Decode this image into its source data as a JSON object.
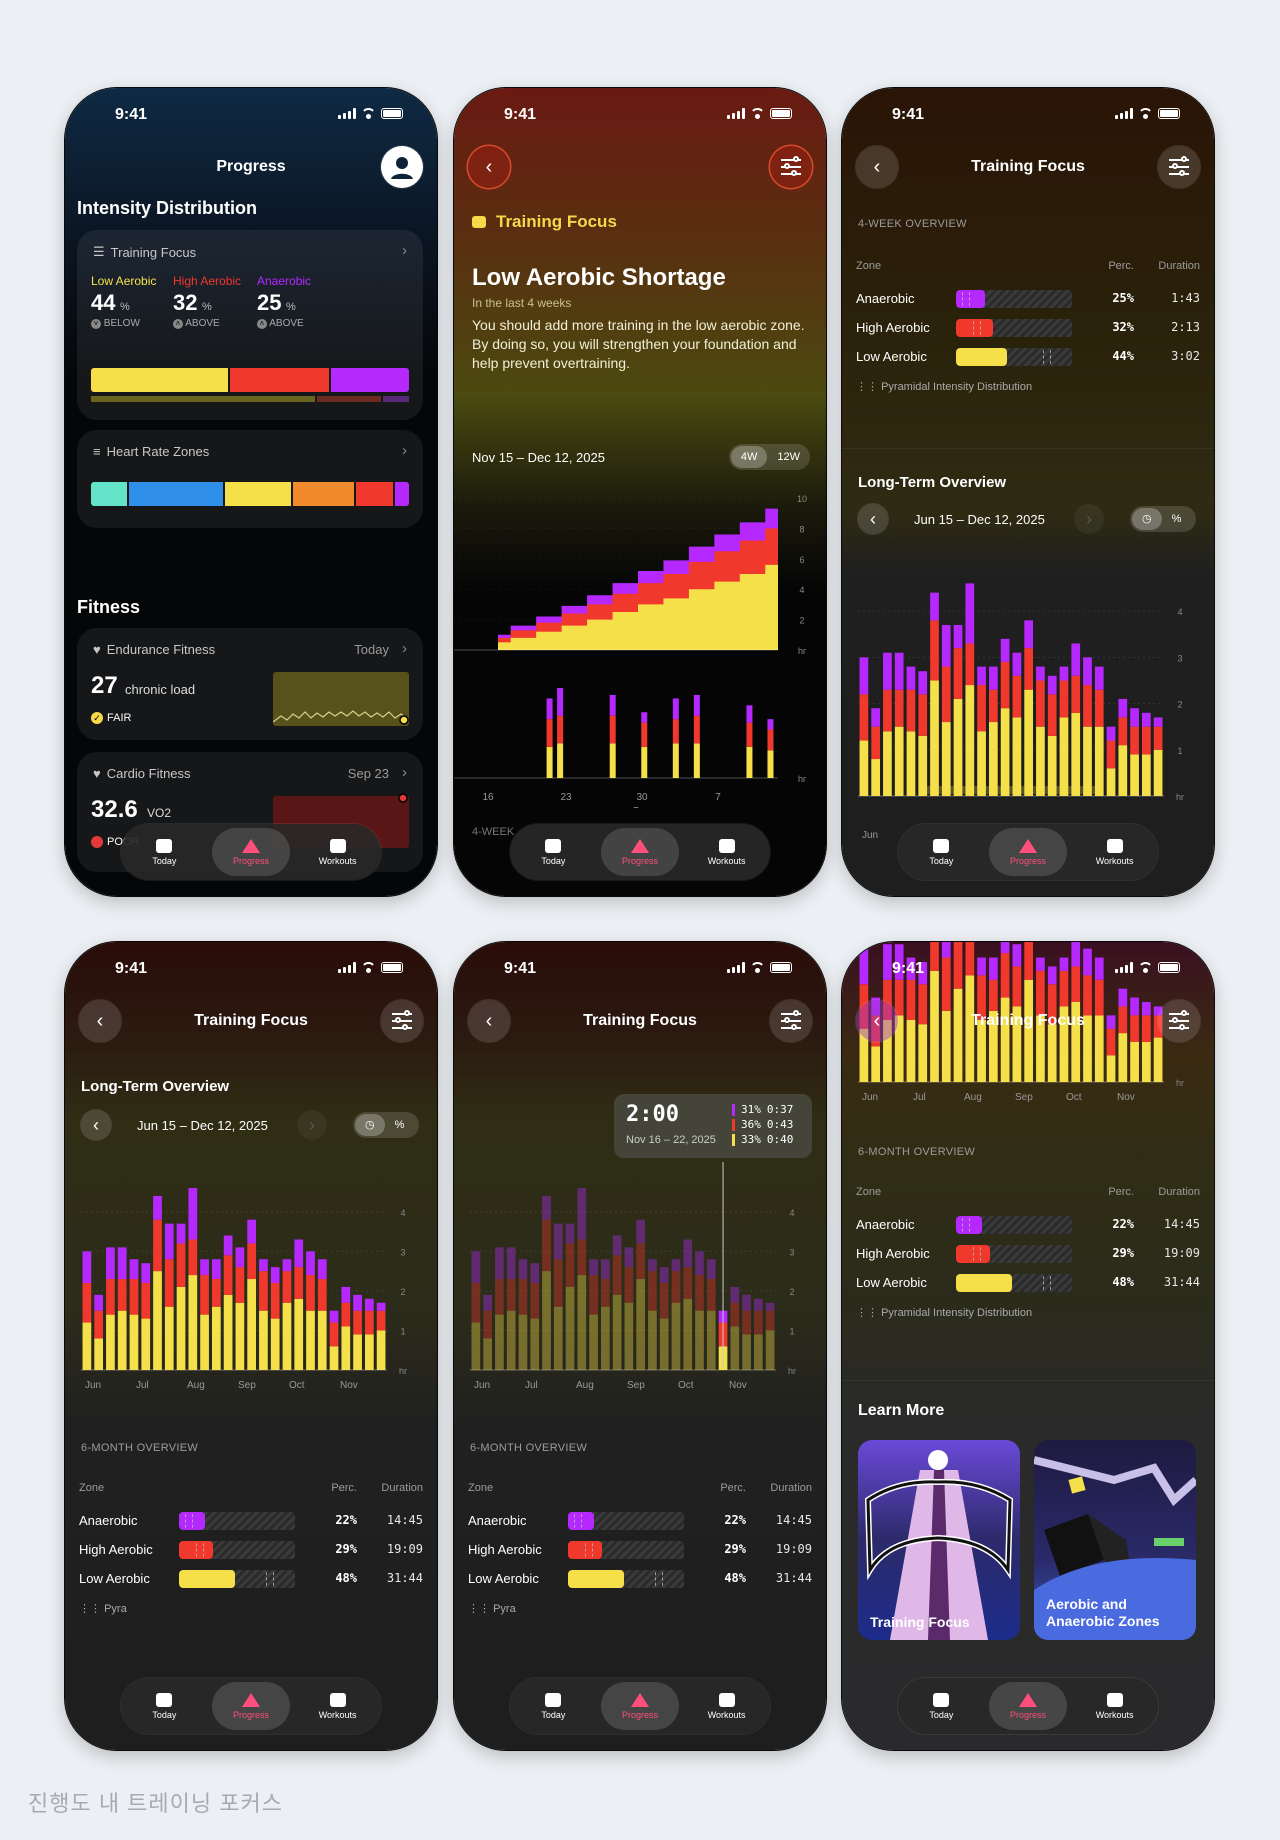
{
  "caption": "진행도 내 트레이닝 포커스",
  "colors": {
    "anaerobic": "#b529ff",
    "high_aerobic": "#f0382c",
    "low_aerobic": "#f6e04a",
    "accent": "#ff4f7a"
  },
  "status_time": "9:41",
  "tabs": [
    "Today",
    "Progress",
    "Workouts"
  ],
  "phone1": {
    "title": "Progress",
    "intensity_title": "Intensity Distribution",
    "training_focus": {
      "label": "Training Focus",
      "zones": [
        {
          "name": "Low Aerobic",
          "value": "44",
          "unit": "%",
          "status": "BELOW",
          "color": "#f6e04a"
        },
        {
          "name": "High Aerobic",
          "value": "32",
          "unit": "%",
          "status": "ABOVE",
          "color": "#f0382c"
        },
        {
          "name": "Anaerobic",
          "value": "25",
          "unit": "%",
          "status": "ABOVE",
          "color": "#b529ff"
        }
      ]
    },
    "heart_rate": {
      "label": "Heart Rate Zones"
    },
    "fitness_title": "Fitness",
    "endurance": {
      "label": "Endurance Fitness",
      "date": "Today",
      "value": "27",
      "unit": "chronic load",
      "status": "FAIR"
    },
    "cardio": {
      "label": "Cardio Fitness",
      "date": "Sep 23",
      "value": "32.6",
      "unit": "VO2",
      "status": "POOR"
    }
  },
  "phone2": {
    "section": "Training Focus",
    "headline": "Low Aerobic Shortage",
    "sub": "In the last 4 weeks",
    "body": "You should add more training in the low aerobic zone. By doing so, you will strengthen your foundation and help prevent overtraining.",
    "range": "Nov 15 – Dec 12, 2025",
    "toggle": [
      "4W",
      "12W"
    ],
    "y_ticks": [
      "10",
      "8",
      "6",
      "4",
      "2",
      "hr"
    ],
    "y_ticks2": [
      "hr"
    ],
    "x_ticks": [
      "16",
      "23",
      "30",
      "7"
    ],
    "x_sub": "Dec",
    "bottom_peek": "4-WEEK"
  },
  "phone3": {
    "title": "Training Focus",
    "overview_label": "4-WEEK OVERVIEW",
    "table_head": {
      "zone": "Zone",
      "perc": "Perc.",
      "dur": "Duration"
    },
    "rows": [
      {
        "name": "Anaerobic",
        "perc": "25%",
        "dur": "1:43",
        "fill": 0.25,
        "mark": 0.05,
        "color": "#b529ff"
      },
      {
        "name": "High Aerobic",
        "perc": "32%",
        "dur": "2:13",
        "fill": 0.32,
        "mark": 0.15,
        "color": "#f0382c"
      },
      {
        "name": "Low Aerobic",
        "perc": "44%",
        "dur": "3:02",
        "fill": 0.44,
        "mark": 0.75,
        "color": "#f6e04a"
      }
    ],
    "pyramidal": "Pyramidal Intensity Distribution",
    "long_term": "Long-Term Overview",
    "lt_range": "Jun 15 – Dec 12, 2025",
    "lt_y": [
      "4",
      "3",
      "2",
      "1",
      "hr"
    ],
    "lt_x": [
      "Jun"
    ]
  },
  "phone4": {
    "title": "Training Focus",
    "long_term": "Long-Term Overview",
    "lt_range": "Jun 15 – Dec 12, 2025",
    "y": [
      "4",
      "3",
      "2",
      "1",
      "hr"
    ],
    "x": [
      "Jun",
      "Jul",
      "Aug",
      "Sep",
      "Oct",
      "Nov"
    ],
    "overview_label": "6-MONTH OVERVIEW",
    "rows": [
      {
        "name": "Anaerobic",
        "perc": "22%",
        "dur": "14:45",
        "fill": 0.22,
        "mark": 0.05,
        "color": "#b529ff"
      },
      {
        "name": "High Aerobic",
        "perc": "29%",
        "dur": "19:09",
        "fill": 0.29,
        "mark": 0.15,
        "color": "#f0382c"
      },
      {
        "name": "Low Aerobic",
        "perc": "48%",
        "dur": "31:44",
        "fill": 0.48,
        "mark": 0.75,
        "color": "#f6e04a"
      }
    ],
    "pyr_peek": "Pyra"
  },
  "phone5": {
    "title": "Training Focus",
    "tooltip": {
      "total": "2:00",
      "range": "Nov 16 – 22, 2025",
      "rows": [
        {
          "perc": "31%",
          "dur": "0:37",
          "color": "#b529ff"
        },
        {
          "perc": "36%",
          "dur": "0:43",
          "color": "#f0382c"
        },
        {
          "perc": "33%",
          "dur": "0:40",
          "color": "#f6e04a"
        }
      ]
    }
  },
  "phone6": {
    "title": "Training Focus",
    "x": [
      "Jun",
      "Jul",
      "Aug",
      "Sep",
      "Oct",
      "Nov"
    ],
    "overview_label": "6-MONTH OVERVIEW",
    "learn_more": "Learn More",
    "cards": [
      "Training Focus",
      "Aerobic and Anaerobic Zones"
    ]
  },
  "chart_data": [
    {
      "type": "area",
      "title": "",
      "series": [
        {
          "name": "Low Aerobic",
          "values": [
            0.5,
            0.8,
            1.2,
            1.6,
            2.0,
            2.5,
            3.0,
            3.4,
            4.0,
            4.5,
            5.0,
            5.6
          ]
        },
        {
          "name": "High Aerobic",
          "values": [
            0.3,
            0.5,
            0.6,
            0.8,
            1.0,
            1.2,
            1.4,
            1.6,
            1.8,
            2.0,
            2.2,
            2.4
          ]
        },
        {
          "name": "Anaerobic",
          "values": [
            0.2,
            0.3,
            0.4,
            0.5,
            0.6,
            0.7,
            0.8,
            0.9,
            1.0,
            1.1,
            1.2,
            1.3
          ]
        }
      ],
      "ylim": [
        0,
        10
      ],
      "ylabel": "hr"
    },
    {
      "type": "bar",
      "title": "",
      "categories": [
        "16",
        "17",
        "18",
        "19",
        "20",
        "21",
        "22",
        "23",
        "24",
        "25",
        "26",
        "27",
        "28",
        "29",
        "30",
        "1",
        "2",
        "3",
        "4",
        "5",
        "6",
        "7",
        "8",
        "9",
        "10",
        "11",
        "12"
      ],
      "series": [
        {
          "name": "Low Aerobic",
          "values": [
            0,
            0,
            0,
            0,
            0,
            0.9,
            1.0,
            0,
            0,
            0,
            0,
            1.0,
            0,
            0,
            0.9,
            0,
            0,
            1.0,
            0,
            1.0,
            0,
            0,
            0,
            0,
            0.9,
            0,
            0.8
          ]
        },
        {
          "name": "High Aerobic",
          "values": [
            0,
            0,
            0,
            0,
            0,
            0.8,
            0.8,
            0,
            0,
            0,
            0,
            0.8,
            0,
            0,
            0.7,
            0,
            0,
            0.7,
            0,
            0.8,
            0,
            0,
            0,
            0,
            0.7,
            0,
            0.6
          ]
        },
        {
          "name": "Anaerobic",
          "values": [
            0,
            0,
            0,
            0,
            0,
            0.6,
            0.8,
            0,
            0,
            0,
            0,
            0.6,
            0,
            0,
            0.3,
            0,
            0,
            0.6,
            0,
            0.6,
            0,
            0,
            0,
            0,
            0.5,
            0,
            0.3
          ]
        }
      ]
    },
    {
      "type": "bar",
      "title": "",
      "categories": [
        "w1",
        "w2",
        "w3",
        "w4",
        "w5",
        "w6",
        "w7",
        "w8",
        "w9",
        "w10",
        "w11",
        "w12",
        "w13",
        "w14",
        "w15",
        "w16",
        "w17",
        "w18",
        "w19",
        "w20",
        "w21",
        "w22",
        "w23",
        "w24",
        "w25",
        "w26"
      ],
      "series": [
        {
          "name": "Low Aerobic",
          "values": [
            1.2,
            0.8,
            1.4,
            1.5,
            1.4,
            1.3,
            2.5,
            1.6,
            2.1,
            2.4,
            1.4,
            1.6,
            1.9,
            1.7,
            2.3,
            1.5,
            1.3,
            1.7,
            1.8,
            1.5,
            1.5,
            0.6,
            1.1,
            0.9,
            0.9,
            1.0
          ]
        },
        {
          "name": "High Aerobic",
          "values": [
            1.0,
            0.7,
            0.9,
            0.8,
            0.9,
            0.9,
            1.3,
            1.2,
            1.1,
            0.9,
            1.0,
            0.7,
            1.0,
            0.9,
            0.9,
            1.0,
            0.9,
            0.8,
            0.8,
            0.9,
            0.8,
            0.6,
            0.6,
            0.6,
            0.6,
            0.5
          ]
        },
        {
          "name": "Anaerobic",
          "values": [
            0.8,
            0.4,
            0.8,
            0.8,
            0.5,
            0.5,
            0.6,
            0.9,
            0.5,
            1.3,
            0.4,
            0.5,
            0.5,
            0.5,
            0.6,
            0.3,
            0.4,
            0.3,
            0.7,
            0.6,
            0.5,
            0.3,
            0.4,
            0.4,
            0.3,
            0.2
          ]
        }
      ],
      "x_ticks": [
        "Jun",
        "Jul",
        "Aug",
        "Sep",
        "Oct",
        "Nov"
      ],
      "ylim": [
        0,
        4.5
      ],
      "ylabel": "hr"
    }
  ]
}
